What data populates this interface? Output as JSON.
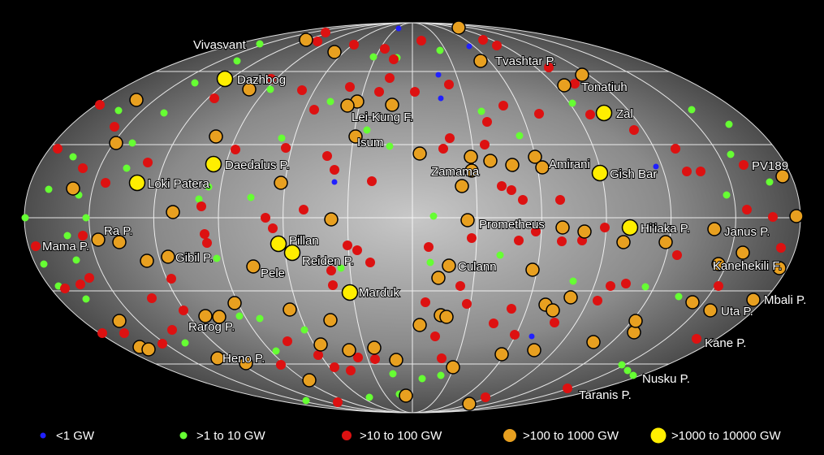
{
  "map": {
    "labels": [
      "Vivasvant",
      "Dazhbog",
      "Lei-Kung F.",
      "Isum",
      "Tvashtar P.",
      "Tonatiuh",
      "Zal",
      "Daedalus P.",
      "Loki Patera",
      "Zamama",
      "Amirani",
      "Gish Bar",
      "PV189",
      "Ra P.",
      "Mama P.",
      "Prometheus",
      "Hi'iaka P.",
      "Janus P.",
      "Pillan",
      "Reiden P.",
      "Gibil P.",
      "Pele",
      "Culann",
      "Kanehekili F.",
      "Marduk",
      "Mbali P.",
      "Uta P.",
      "Rarog P.",
      "Kane P.",
      "Heno P.",
      "Nusku P.",
      "Taranis P."
    ],
    "legend": [
      {
        "label": "<1 GW",
        "color": "#2020ff"
      },
      {
        "label": ">1 to 10 GW",
        "color": "#66ff33"
      },
      {
        "label": ">10 to 100 GW",
        "color": "#dd1111"
      },
      {
        "label": ">100 to 1000 GW",
        "color": "#e8a020"
      },
      {
        "label": ">1000 to 10000 GW",
        "color": "#ffee00"
      }
    ]
  }
}
